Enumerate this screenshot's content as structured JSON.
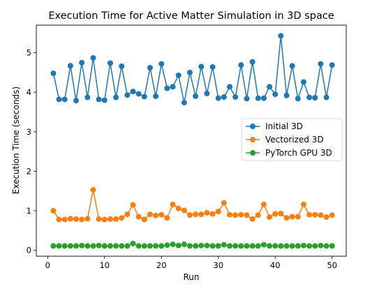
{
  "chart_data": {
    "type": "line",
    "title": "Execution Time for Active Matter Simulation in 3D space",
    "xlabel": "Run",
    "ylabel": "Execution Time (seconds)",
    "xlim": [
      -2,
      52.5
    ],
    "ylim": [
      -0.15,
      5.7
    ],
    "xticks": [
      0,
      10,
      20,
      30,
      40,
      50
    ],
    "yticks": [
      0,
      1,
      2,
      3,
      4,
      5
    ],
    "grid": false,
    "legend_position": "center-right",
    "x": [
      1,
      2,
      3,
      4,
      5,
      6,
      7,
      8,
      9,
      10,
      11,
      12,
      13,
      14,
      15,
      16,
      17,
      18,
      19,
      20,
      21,
      22,
      23,
      24,
      25,
      26,
      27,
      28,
      29,
      30,
      31,
      32,
      33,
      34,
      35,
      36,
      37,
      38,
      39,
      40,
      41,
      42,
      43,
      44,
      45,
      46,
      47,
      48,
      49,
      50
    ],
    "series": [
      {
        "name": "Initial 3D",
        "color": "#1f77b4",
        "values": [
          4.48,
          3.82,
          3.82,
          4.67,
          3.79,
          4.75,
          3.87,
          4.87,
          3.82,
          3.8,
          4.74,
          3.87,
          4.66,
          3.93,
          4.02,
          3.96,
          3.89,
          4.62,
          3.9,
          4.72,
          4.1,
          4.14,
          4.43,
          3.74,
          4.5,
          3.9,
          4.65,
          3.97,
          4.64,
          3.85,
          3.88,
          4.14,
          3.88,
          4.69,
          3.84,
          4.77,
          3.85,
          3.85,
          4.14,
          3.95,
          5.43,
          3.92,
          4.67,
          3.84,
          4.26,
          3.87,
          3.86,
          4.72,
          3.87,
          4.69
        ]
      },
      {
        "name": "Vectorized 3D",
        "color": "#ff7f0e",
        "values": [
          1.0,
          0.78,
          0.78,
          0.8,
          0.79,
          0.78,
          0.8,
          1.53,
          0.79,
          0.78,
          0.79,
          0.79,
          0.82,
          0.91,
          1.15,
          0.85,
          0.78,
          0.91,
          0.88,
          0.9,
          0.82,
          1.16,
          1.06,
          1.01,
          0.89,
          0.91,
          0.91,
          0.95,
          0.92,
          0.98,
          1.2,
          0.9,
          0.89,
          0.9,
          0.89,
          0.79,
          0.89,
          1.16,
          0.84,
          0.92,
          0.93,
          0.82,
          0.85,
          0.85,
          1.16,
          0.9,
          0.9,
          0.89,
          0.84,
          0.89
        ]
      },
      {
        "name": "PyTorch GPU 3D",
        "color": "#2ca02c",
        "values": [
          0.11,
          0.11,
          0.11,
          0.11,
          0.11,
          0.12,
          0.11,
          0.11,
          0.12,
          0.11,
          0.11,
          0.11,
          0.11,
          0.11,
          0.17,
          0.11,
          0.11,
          0.11,
          0.11,
          0.11,
          0.13,
          0.15,
          0.12,
          0.15,
          0.11,
          0.11,
          0.12,
          0.12,
          0.11,
          0.11,
          0.14,
          0.11,
          0.11,
          0.11,
          0.11,
          0.11,
          0.11,
          0.14,
          0.11,
          0.11,
          0.11,
          0.11,
          0.11,
          0.11,
          0.12,
          0.11,
          0.11,
          0.12,
          0.11,
          0.11
        ]
      }
    ]
  }
}
